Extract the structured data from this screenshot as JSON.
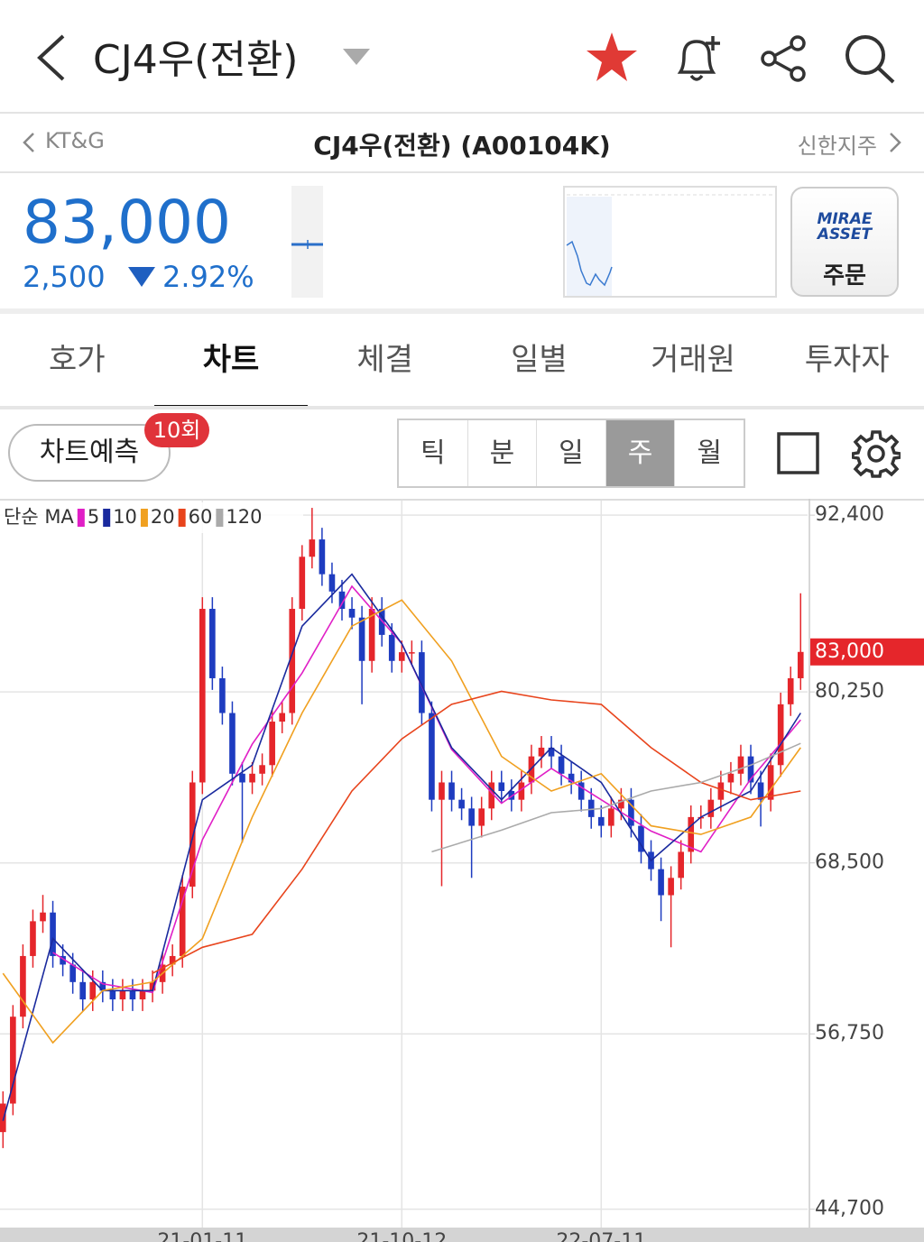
{
  "header": {
    "title": "CJ4우(전환)"
  },
  "stock_nav": {
    "prev": "KT&G",
    "current": "CJ4우(전환) (A00104K)",
    "next": "신한지주"
  },
  "quote": {
    "price": "83,000",
    "change": "2,500",
    "change_pct": "2.92%"
  },
  "order_button": {
    "logo_line1": "MIRAE",
    "logo_line2": "ASSET",
    "label": "주문"
  },
  "tabs": [
    "호가",
    "차트",
    "체결",
    "일별",
    "거래원",
    "투자자"
  ],
  "active_tab": 1,
  "toolbar": {
    "predict": "차트예측",
    "badge": "10회",
    "periods": [
      "틱",
      "분",
      "일",
      "주",
      "월"
    ],
    "active_period": 3
  },
  "chart_data": {
    "type": "candlestick",
    "legend_title": "단순 MA",
    "up_color": "#e5262b",
    "down_color": "#1e3cc0",
    "candles": [
      [
        50000,
        52800,
        48900,
        51960
      ],
      [
        51960,
        58730,
        51160,
        57930
      ],
      [
        57930,
        62900,
        57130,
        62100
      ],
      [
        62100,
        65290,
        61300,
        64490
      ],
      [
        64490,
        66300,
        63690,
        65090
      ],
      [
        65090,
        65890,
        61300,
        62100
      ],
      [
        62100,
        62900,
        60710,
        61510
      ],
      [
        61510,
        62310,
        59510,
        60310
      ],
      [
        60310,
        61110,
        58320,
        59120
      ],
      [
        59120,
        61110,
        58320,
        60310
      ],
      [
        60310,
        61110,
        58920,
        59720
      ],
      [
        59720,
        60520,
        58320,
        59120
      ],
      [
        59120,
        60520,
        58320,
        59720
      ],
      [
        59720,
        60520,
        58320,
        59120
      ],
      [
        59120,
        60520,
        58320,
        59720
      ],
      [
        59720,
        61110,
        58920,
        60310
      ],
      [
        60310,
        62310,
        59510,
        61510
      ],
      [
        61510,
        62900,
        60710,
        62100
      ],
      [
        62100,
        67670,
        61300,
        66870
      ],
      [
        66870,
        74830,
        66070,
        74030
      ],
      [
        74030,
        86760,
        73230,
        85960
      ],
      [
        85960,
        86760,
        80390,
        81190
      ],
      [
        81190,
        81990,
        78000,
        78800
      ],
      [
        78800,
        79600,
        73830,
        74630
      ],
      [
        74630,
        75430,
        69900,
        74030
      ],
      [
        74030,
        75430,
        73230,
        74630
      ],
      [
        74630,
        76020,
        73830,
        75220
      ],
      [
        75220,
        79010,
        74420,
        78210
      ],
      [
        78210,
        79600,
        77410,
        78800
      ],
      [
        78800,
        86760,
        78000,
        85960
      ],
      [
        85960,
        90340,
        85160,
        89540
      ],
      [
        89540,
        92900,
        88740,
        90730
      ],
      [
        90730,
        91530,
        87540,
        88340
      ],
      [
        88340,
        89140,
        86350,
        87150
      ],
      [
        87150,
        87950,
        85160,
        85960
      ],
      [
        85960,
        86760,
        84560,
        85360
      ],
      [
        85360,
        86160,
        79400,
        82380
      ],
      [
        82380,
        86760,
        81580,
        85960
      ],
      [
        85960,
        86760,
        83370,
        84170
      ],
      [
        84170,
        84970,
        81580,
        82380
      ],
      [
        82380,
        83780,
        81580,
        82980
      ],
      [
        82980,
        83780,
        82180,
        82980
      ],
      [
        82980,
        83780,
        78000,
        78800
      ],
      [
        78800,
        79600,
        72040,
        72840
      ],
      [
        72840,
        74830,
        66900,
        74030
      ],
      [
        74030,
        74830,
        72040,
        72840
      ],
      [
        72840,
        73640,
        71440,
        72240
      ],
      [
        72240,
        73040,
        67470,
        71050
      ],
      [
        71050,
        73040,
        70250,
        72240
      ],
      [
        72240,
        74830,
        71440,
        74030
      ],
      [
        74030,
        74830,
        72640,
        73440
      ],
      [
        73440,
        74240,
        72040,
        72840
      ],
      [
        72840,
        74830,
        72040,
        74030
      ],
      [
        74030,
        76620,
        73230,
        75820
      ],
      [
        75820,
        77220,
        75020,
        76420
      ],
      [
        76420,
        77220,
        75020,
        75820
      ],
      [
        75820,
        76620,
        73830,
        74630
      ],
      [
        74630,
        75430,
        73230,
        74030
      ],
      [
        74030,
        74830,
        72040,
        72840
      ],
      [
        72840,
        73640,
        70850,
        71650
      ],
      [
        71650,
        72450,
        70250,
        71050
      ],
      [
        71050,
        73040,
        70250,
        72240
      ],
      [
        72240,
        73640,
        71440,
        72840
      ],
      [
        72840,
        73640,
        70250,
        71050
      ],
      [
        71050,
        71850,
        68460,
        69260
      ],
      [
        69260,
        70060,
        67270,
        68070
      ],
      [
        68070,
        68870,
        64500,
        66280
      ],
      [
        66280,
        68270,
        62700,
        67470
      ],
      [
        67470,
        70060,
        66670,
        69260
      ],
      [
        69260,
        72450,
        68460,
        71650
      ],
      [
        71650,
        72450,
        70850,
        71650
      ],
      [
        71650,
        73640,
        70850,
        72840
      ],
      [
        72840,
        74830,
        72040,
        74030
      ],
      [
        74030,
        75430,
        73230,
        74630
      ],
      [
        74630,
        76620,
        73830,
        75820
      ],
      [
        75820,
        76620,
        73230,
        74030
      ],
      [
        74030,
        74830,
        71000,
        72840
      ],
      [
        72840,
        76020,
        72040,
        75220
      ],
      [
        75220,
        80200,
        74420,
        79400
      ],
      [
        79400,
        81990,
        78600,
        81190
      ],
      [
        81190,
        87030,
        80390,
        83000
      ]
    ],
    "series": [
      {
        "name": "5",
        "color": "#e01fc6",
        "x": [
          5,
          10,
          15,
          20,
          25,
          30,
          35,
          40,
          45,
          50,
          55,
          60,
          65,
          70,
          75,
          80
        ],
        "values": [
          62340,
          60190,
          59600,
          70090,
          76660,
          81550,
          87510,
          83570,
          76300,
          72600,
          74990,
          72840,
          70690,
          69260,
          74270,
          78330
        ]
      },
      {
        "name": "10",
        "color": "#1a2a9e",
        "x": [
          0,
          5,
          10,
          15,
          20,
          25,
          30,
          35,
          40,
          45,
          50,
          55,
          60,
          65,
          70,
          75,
          80
        ],
        "values": [
          50770,
          63300,
          59720,
          59720,
          72840,
          75220,
          84770,
          88340,
          83570,
          76420,
          72840,
          76420,
          74030,
          68660,
          71650,
          73440,
          78800
        ]
      },
      {
        "name": "20",
        "color": "#f0a020",
        "x": [
          0,
          5,
          10,
          15,
          20,
          25,
          30,
          35,
          40,
          45,
          50,
          55,
          60,
          65,
          70,
          75,
          80
        ],
        "values": [
          60910,
          56140,
          59720,
          60310,
          63300,
          71650,
          78800,
          84770,
          86560,
          82380,
          75820,
          73440,
          74630,
          71050,
          70460,
          71650,
          76420
        ]
      },
      {
        "name": "60",
        "color": "#e8441c",
        "x": [
          15,
          20,
          25,
          30,
          35,
          40,
          45,
          50,
          55,
          60,
          65,
          70,
          75,
          80
        ],
        "values": [
          60910,
          62700,
          63590,
          68070,
          73440,
          77020,
          79400,
          80290,
          79700,
          79400,
          76420,
          74030,
          72840,
          73440
        ]
      },
      {
        "name": "120",
        "color": "#aaaaaa",
        "x": [
          43,
          50,
          55,
          60,
          65,
          70,
          75,
          80
        ],
        "values": [
          69260,
          70750,
          71950,
          72240,
          73440,
          74030,
          75220,
          76710
        ]
      }
    ],
    "ylim": [
      43500,
      93400
    ],
    "yticks": [
      {
        "value": 92400,
        "label": "92,400"
      },
      {
        "value": 80250,
        "label": "80,250"
      },
      {
        "value": 68500,
        "label": "68,500"
      },
      {
        "value": 56750,
        "label": "56,750"
      },
      {
        "value": 44700,
        "label": "44,700"
      }
    ],
    "xlim": [
      -0.3,
      80.7
    ],
    "xticks": [
      {
        "value": 20,
        "label": "21-01-11"
      },
      {
        "value": 40,
        "label": "21-10-12"
      },
      {
        "value": 60,
        "label": "22-07-11"
      }
    ],
    "last_price": {
      "value": 83000,
      "label": "83,000"
    },
    "last_price_color": "#e5262b",
    "grid": true
  }
}
